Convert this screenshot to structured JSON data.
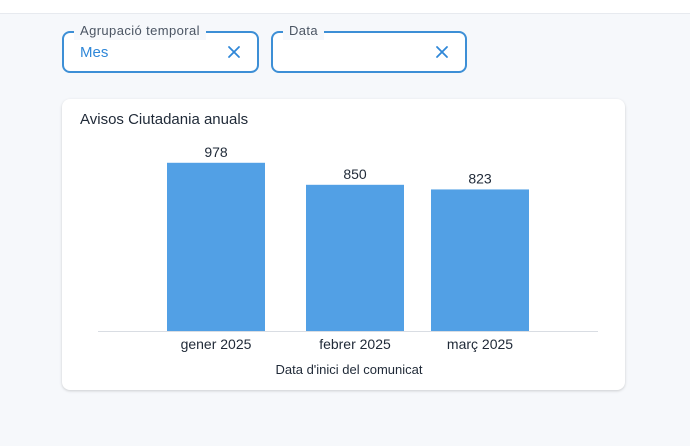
{
  "filters": {
    "agrupacio": {
      "label": "Agrupació temporal",
      "value": "Mes",
      "clear_icon": "close-icon"
    },
    "data": {
      "label": "Data",
      "value": "",
      "clear_icon": "close-icon"
    }
  },
  "colors": {
    "accent": "#3d8fd6",
    "bar": "#52a0e5",
    "text": "#1f2937"
  },
  "chart_data": {
    "type": "bar",
    "title": "Avisos Ciutadania anuals",
    "xlabel": "Data d'inici del comunicat",
    "ylabel": "",
    "categories": [
      "gener 2025",
      "febrer 2025",
      "març 2025"
    ],
    "values": [
      978,
      850,
      823
    ],
    "ylim": [
      0,
      1000
    ],
    "grid": false,
    "legend": "none"
  }
}
